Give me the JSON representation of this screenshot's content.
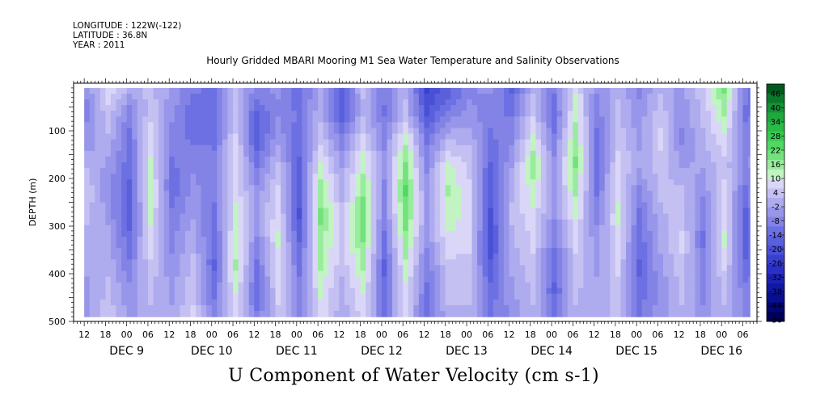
{
  "header": {
    "longitude": "LONGITUDE : 122W(-122)",
    "latitude": "LATITUDE : 36.8N",
    "year": "YEAR : 2011"
  },
  "title": "Hourly Gridded MBARI Mooring M1 Sea Water Temperature and Salinity Observations",
  "subtitle": "U Component of Water Velocity (cm s-1)",
  "chart_data": {
    "type": "heatmap",
    "title": "Hourly Gridded MBARI Mooring M1 Sea Water Temperature and Salinity Observations",
    "subtitle": "U Component of Water Velocity (cm s-1)",
    "ylabel": "DEPTH (m)",
    "ylim": [
      500,
      0
    ],
    "y_ticks": [
      100,
      200,
      300,
      400,
      500
    ],
    "x_time_range": [
      "2011-12-08T09:00",
      "2011-12-16T10:00"
    ],
    "data_time_range": [
      "2011-12-08T12:00",
      "2011-12-16T08:00"
    ],
    "data_depth_range": [
      10,
      490
    ],
    "x_hour_ticks": [
      "12",
      "18",
      "00",
      "06",
      "12",
      "18",
      "00",
      "06",
      "12",
      "18",
      "00",
      "06",
      "12",
      "18",
      "00",
      "06",
      "12",
      "18",
      "00",
      "06",
      "12",
      "18",
      "00",
      "06",
      "12",
      "18",
      "00",
      "06",
      "12",
      "18",
      "00",
      "06"
    ],
    "x_day_labels": [
      "DEC 9",
      "DEC 10",
      "DEC 11",
      "DEC 12",
      "DEC 13",
      "DEC 14",
      "DEC 15",
      "DEC 16"
    ],
    "colorbar": {
      "labels": [
        "46",
        "40",
        "34",
        "28",
        "22",
        "16",
        "10",
        "4",
        "-2",
        "-8",
        "-14",
        "-20",
        "-26",
        "-32",
        "-38",
        "-44",
        "-50"
      ],
      "colors": [
        "#005a1e",
        "#0a7a2a",
        "#149236",
        "#1ea83e",
        "#28bb46",
        "#36ca50",
        "#50d862",
        "#72e27c",
        "#98ec9c",
        "#c2f3c2",
        "#dad6f8",
        "#c4c0f2",
        "#aeabee",
        "#9896ea",
        "#8383e6",
        "#6c70e2",
        "#5a60dc",
        "#4a50d6",
        "#3a40ce",
        "#2a30c4",
        "#1c22b6",
        "#1018a4",
        "#080e8e",
        "#020676",
        "#000058"
      ]
    },
    "columns": [
      {
        "t": 0,
        "p": [
          -4,
          -6,
          -4,
          2,
          6,
          4,
          2,
          0,
          -2,
          -2
        ]
      },
      {
        "t": 6,
        "p": [
          10,
          6,
          2,
          -2,
          -4,
          -2,
          0,
          2,
          4,
          6
        ]
      },
      {
        "t": 12,
        "p": [
          2,
          -8,
          -10,
          -12,
          -14,
          -16,
          -12,
          -8,
          -4,
          -2
        ]
      },
      {
        "t": 18,
        "p": [
          4,
          6,
          10,
          12,
          14,
          12,
          10,
          6,
          4,
          2
        ]
      },
      {
        "t": 24,
        "p": [
          -2,
          -4,
          -8,
          -10,
          -12,
          -8,
          -6,
          -4,
          -2,
          0
        ]
      },
      {
        "t": 30,
        "p": [
          -8,
          -12,
          -10,
          -6,
          -4,
          -2,
          2,
          4,
          6,
          8
        ]
      },
      {
        "t": 36,
        "p": [
          -10,
          -12,
          -10,
          -8,
          -8,
          -10,
          -12,
          -14,
          -10,
          -8
        ]
      },
      {
        "t": 42,
        "p": [
          4,
          4,
          8,
          10,
          10,
          12,
          14,
          16,
          12,
          8
        ]
      },
      {
        "t": 48,
        "p": [
          -6,
          -14,
          -16,
          -10,
          -4,
          -2,
          -6,
          -10,
          -12,
          -8
        ]
      },
      {
        "t": 54,
        "p": [
          -4,
          -6,
          -2,
          4,
          8,
          10,
          12,
          10,
          8,
          6
        ]
      },
      {
        "t": 60,
        "p": [
          -12,
          -10,
          -12,
          -14,
          -16,
          -18,
          -14,
          -10,
          -8,
          -6
        ]
      },
      {
        "t": 66,
        "p": [
          0,
          2,
          6,
          12,
          18,
          20,
          18,
          16,
          12,
          10
        ]
      },
      {
        "t": 72,
        "p": [
          -14,
          -16,
          -8,
          -2,
          2,
          4,
          6,
          4,
          2,
          0
        ]
      },
      {
        "t": 78,
        "p": [
          4,
          2,
          8,
          14,
          18,
          22,
          20,
          16,
          12,
          8
        ]
      },
      {
        "t": 84,
        "p": [
          -8,
          -10,
          -6,
          -4,
          -6,
          -8,
          -10,
          -14,
          -12,
          -10
        ]
      },
      {
        "t": 90,
        "p": [
          2,
          4,
          14,
          20,
          24,
          22,
          18,
          14,
          10,
          8
        ]
      },
      {
        "t": 96,
        "p": [
          -22,
          -18,
          -10,
          -6,
          -4,
          -2,
          -4,
          -8,
          -10,
          -12
        ]
      },
      {
        "t": 102,
        "p": [
          -16,
          -8,
          2,
          12,
          16,
          14,
          10,
          6,
          4,
          2
        ]
      },
      {
        "t": 108,
        "p": [
          -6,
          -4,
          2,
          6,
          8,
          10,
          8,
          6,
          4,
          2
        ]
      },
      {
        "t": 114,
        "p": [
          -4,
          -8,
          -10,
          -14,
          -16,
          -18,
          -20,
          -16,
          -12,
          -10
        ]
      },
      {
        "t": 120,
        "p": [
          -14,
          -10,
          -6,
          -2,
          2,
          4,
          2,
          0,
          -2,
          -4
        ]
      },
      {
        "t": 126,
        "p": [
          2,
          6,
          12,
          18,
          14,
          10,
          8,
          6,
          4,
          2
        ]
      },
      {
        "t": 132,
        "p": [
          -8,
          -12,
          -8,
          -4,
          -2,
          -4,
          -8,
          -12,
          -14,
          -10
        ]
      },
      {
        "t": 138,
        "p": [
          10,
          14,
          18,
          20,
          16,
          12,
          8,
          6,
          4,
          2
        ]
      },
      {
        "t": 144,
        "p": [
          -4,
          -8,
          -10,
          -12,
          -10,
          -6,
          -4,
          -2,
          0,
          2
        ]
      },
      {
        "t": 150,
        "p": [
          2,
          4,
          6,
          8,
          10,
          12,
          10,
          8,
          6,
          4
        ]
      },
      {
        "t": 156,
        "p": [
          -6,
          -4,
          -2,
          0,
          -6,
          -10,
          -12,
          -14,
          -12,
          -10
        ]
      },
      {
        "t": 162,
        "p": [
          2,
          6,
          8,
          6,
          4,
          2,
          0,
          -2,
          -4,
          -2
        ]
      },
      {
        "t": 168,
        "p": [
          -2,
          -4,
          -6,
          -2,
          4,
          6,
          8,
          6,
          4,
          2
        ]
      },
      {
        "t": 174,
        "p": [
          6,
          4,
          2,
          0,
          -4,
          -8,
          -10,
          -8,
          -6,
          -4
        ]
      },
      {
        "t": 180,
        "p": [
          20,
          16,
          10,
          6,
          8,
          10,
          12,
          8,
          4,
          2
        ]
      },
      {
        "t": 186,
        "p": [
          -8,
          -10,
          -8,
          -6,
          -10,
          -14,
          -16,
          -12,
          -8,
          -6
        ]
      },
      {
        "t": 190,
        "p": [
          -12,
          -8,
          -4,
          -2,
          -2,
          -4,
          -6,
          -8,
          -6,
          -4
        ]
      }
    ]
  }
}
